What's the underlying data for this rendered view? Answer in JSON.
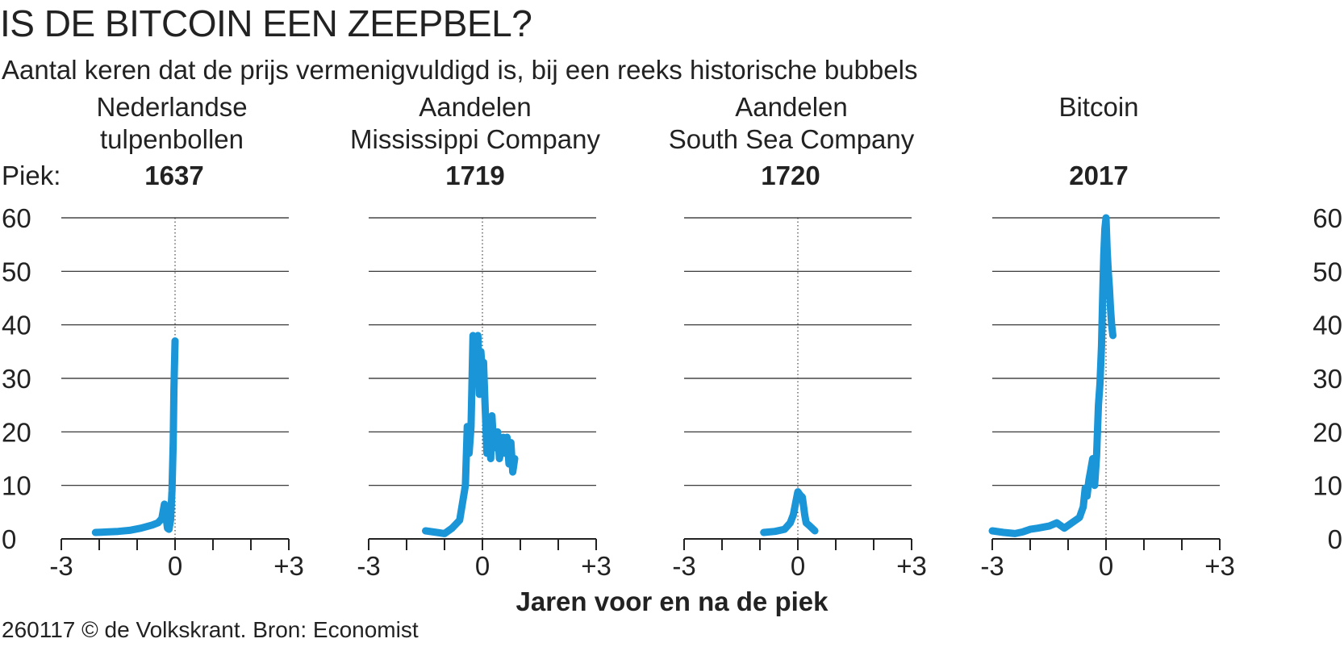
{
  "title": "IS DE BITCOIN EEN ZEEPBEL?",
  "subtitle": "Aantal keren dat de prijs vermenigvuldigd is, bij een reeks historische bubbels",
  "piek_label": "Piek:",
  "xlabel": "Jaren voor en na de piek",
  "source": "260117 © de Volkskrant. Bron: Economist",
  "colors": {
    "line": "#1a95d8",
    "grid": "#222222",
    "text": "#222222"
  },
  "chart_data": {
    "type": "line",
    "ylim": [
      0,
      60
    ],
    "yticks": [
      "0",
      "10",
      "20",
      "30",
      "40",
      "50",
      "60"
    ],
    "xlim": [
      -3,
      3
    ],
    "xtick_labels": [
      "-3",
      "0",
      "+3"
    ],
    "panels": [
      {
        "title_lines": [
          "Nederlandse",
          "tulpenbollen"
        ],
        "peak_year": "1637",
        "x": [
          -2.1,
          -1.8,
          -1.5,
          -1.2,
          -0.9,
          -0.6,
          -0.45,
          -0.35,
          -0.28,
          -0.24,
          -0.2,
          -0.16,
          -0.12,
          -0.08,
          -0.05,
          -0.03,
          0.0
        ],
        "y": [
          1.2,
          1.3,
          1.4,
          1.6,
          2.0,
          2.6,
          3.0,
          3.8,
          6.5,
          4.2,
          2.0,
          1.8,
          3.5,
          9.0,
          18.0,
          28.0,
          37.0
        ]
      },
      {
        "title_lines": [
          "Aandelen",
          "Mississippi Company"
        ],
        "peak_year": "1719",
        "x": [
          -1.5,
          -1.2,
          -1.0,
          -0.8,
          -0.6,
          -0.45,
          -0.4,
          -0.35,
          -0.3,
          -0.25,
          -0.18,
          -0.12,
          -0.08,
          -0.04,
          0.0,
          0.03,
          0.07,
          0.12,
          0.17,
          0.22,
          0.25,
          0.3,
          0.35,
          0.4,
          0.45,
          0.5,
          0.55,
          0.6,
          0.65,
          0.7,
          0.75,
          0.8,
          0.85
        ],
        "y": [
          1.5,
          1.2,
          1.0,
          2.0,
          3.5,
          10.0,
          21.0,
          16.0,
          21.0,
          38.0,
          29.0,
          38.0,
          27.0,
          35.0,
          31.0,
          33.0,
          25.0,
          16.0,
          22.0,
          15.0,
          23.0,
          17.0,
          18.0,
          20.0,
          15.0,
          17.0,
          19.0,
          16.0,
          19.0,
          14.0,
          18.0,
          12.5,
          15.0
        ]
      },
      {
        "title_lines": [
          "Aandelen",
          "South Sea Company"
        ],
        "peak_year": "1720",
        "x": [
          -0.9,
          -0.6,
          -0.35,
          -0.2,
          -0.12,
          -0.05,
          0.0,
          0.06,
          0.12,
          0.18,
          0.22,
          0.3,
          0.45
        ],
        "y": [
          1.2,
          1.4,
          1.8,
          3.0,
          4.5,
          7.0,
          8.8,
          8.2,
          7.8,
          4.5,
          3.0,
          2.5,
          1.5
        ]
      },
      {
        "title_lines": [
          "Bitcoin"
        ],
        "peak_year": "2017",
        "x": [
          -3.0,
          -2.7,
          -2.4,
          -2.2,
          -2.0,
          -1.8,
          -1.5,
          -1.3,
          -1.1,
          -0.9,
          -0.7,
          -0.6,
          -0.55,
          -0.5,
          -0.45,
          -0.4,
          -0.35,
          -0.3,
          -0.25,
          -0.2,
          -0.16,
          -0.12,
          -0.09,
          -0.06,
          -0.03,
          0.0,
          0.03,
          0.06,
          0.09,
          0.12,
          0.15,
          0.18
        ],
        "y": [
          1.5,
          1.2,
          1.0,
          1.3,
          1.8,
          2.0,
          2.4,
          3.0,
          2.0,
          3.0,
          4.0,
          6.0,
          9.5,
          8.0,
          11.0,
          13.0,
          15.0,
          10.0,
          15.5,
          25.0,
          29.0,
          36.0,
          45.0,
          53.0,
          58.0,
          60.0,
          54.0,
          50.0,
          47.0,
          43.0,
          40.0,
          38.0
        ]
      }
    ]
  }
}
